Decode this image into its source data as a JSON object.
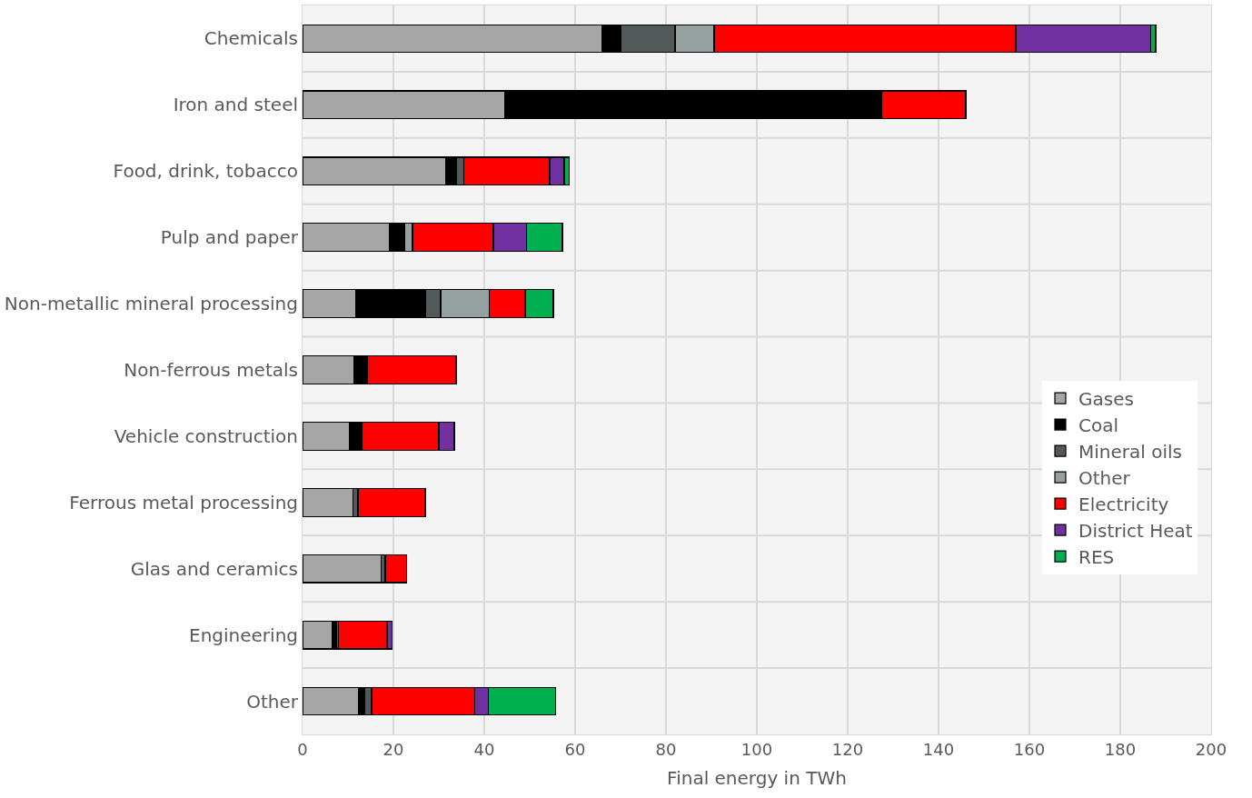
{
  "chart_data": {
    "type": "bar",
    "orientation": "horizontal",
    "stacked": true,
    "xlabel": "Final energy in TWh",
    "categories": [
      "Chemicals",
      "Iron and steel",
      "Food, drink, tobacco",
      "Pulp and paper",
      "Non-metallic mineral processing",
      "Non-ferrous metals",
      "Vehicle construction",
      "Ferrous metal processing",
      "Glas and ceramics",
      "Engineering",
      "Other"
    ],
    "series": [
      {
        "name": "Gases",
        "color": "#a6a6a6",
        "values": [
          66,
          44.5,
          31.5,
          19.1,
          11.8,
          11.3,
          10.3,
          11.1,
          17.3,
          6.6,
          12.4
        ]
      },
      {
        "name": "Coal",
        "color": "#000000",
        "values": [
          4,
          82.9,
          2.3,
          3.4,
          15.2,
          3,
          2.8,
          null,
          null,
          0.9,
          1.3
        ]
      },
      {
        "name": "Mineral oils",
        "color": "#525a59",
        "values": [
          12,
          null,
          1.7,
          null,
          3.4,
          null,
          null,
          1.1,
          0.9,
          0.4,
          1.5
        ]
      },
      {
        "name": "Other",
        "color": "#95a0a0",
        "values": [
          8.6,
          null,
          null,
          1.7,
          10.7,
          null,
          null,
          null,
          null,
          null,
          null
        ]
      },
      {
        "name": "Electricity",
        "color": "#ff0000",
        "values": [
          66.4,
          18.6,
          18.9,
          17.8,
          7.9,
          19.5,
          16.9,
          14.8,
          4.7,
          10.7,
          22.7
        ]
      },
      {
        "name": "District Heat",
        "color": "#7030a0",
        "values": [
          29.7,
          null,
          3.2,
          7.3,
          null,
          null,
          3.4,
          null,
          null,
          1.1,
          3
        ]
      },
      {
        "name": "RES",
        "color": "#00b050",
        "values": [
          1.1,
          null,
          1.1,
          7.9,
          6.2,
          null,
          null,
          null,
          null,
          null,
          14.8
        ]
      }
    ],
    "xlim": [
      0,
      200
    ],
    "xticks": [
      0,
      20,
      40,
      60,
      80,
      100,
      120,
      140,
      160,
      180,
      200
    ],
    "grid": "x",
    "legend": "right"
  }
}
